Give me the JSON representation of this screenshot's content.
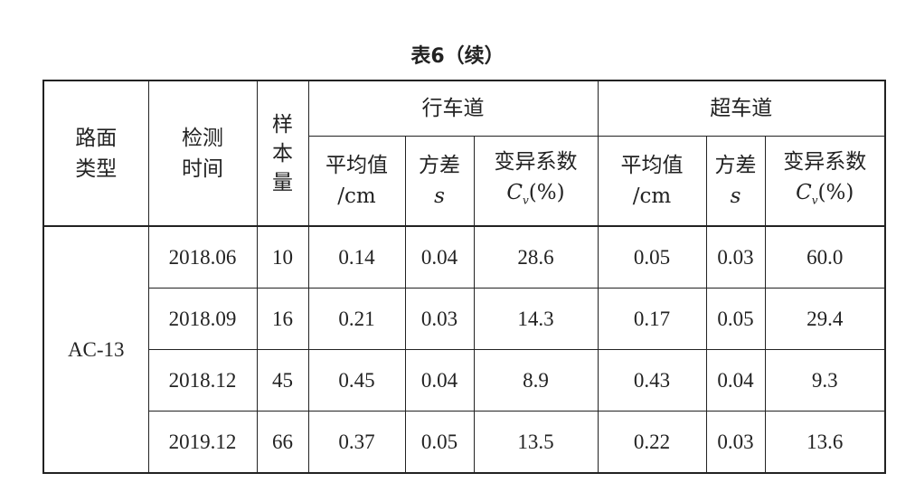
{
  "title": "表6（续）",
  "headers": {
    "surface_type": "路面\n类型",
    "test_time": "检测\n时间",
    "sample_size": "样\n本\n量",
    "groups": [
      "行车道",
      "超车道"
    ],
    "sub": {
      "mean": "平均值",
      "mean_unit": "/cm",
      "variance": "方差",
      "variance_sym": "s",
      "cv": "变异系数",
      "cv_sym": "C",
      "cv_sub": "v",
      "cv_unit": "(%)"
    }
  },
  "surface_type_value": "AC-13",
  "rows": [
    [
      "2018.06",
      "10",
      "0.14",
      "0.04",
      "28.6",
      "0.05",
      "0.03",
      "60.0"
    ],
    [
      "2018.09",
      "16",
      "0.21",
      "0.03",
      "14.3",
      "0.17",
      "0.05",
      "29.4"
    ],
    [
      "2018.12",
      "45",
      "0.45",
      "0.04",
      "8.9",
      "0.43",
      "0.04",
      "9.3"
    ],
    [
      "2019.12",
      "66",
      "0.37",
      "0.05",
      "13.5",
      "0.22",
      "0.03",
      "13.6"
    ]
  ]
}
